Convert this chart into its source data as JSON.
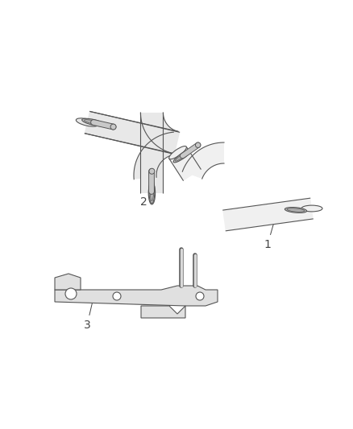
{
  "bg_color": "#ffffff",
  "line_color": "#555555",
  "tube_fill": "#e8e8e8",
  "tube_fill2": "#f0f0f0",
  "label_color": "#444444",
  "figsize": [
    4.38,
    5.33
  ],
  "dpi": 100,
  "label1": "1",
  "label2": "2",
  "label3": "3"
}
